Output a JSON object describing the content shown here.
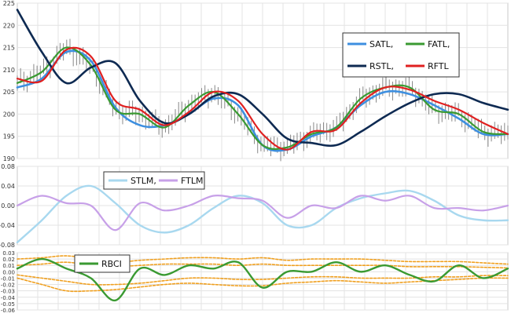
{
  "chart_data": [
    {
      "type": "line",
      "title": "",
      "ylim": [
        190,
        225
      ],
      "yticks": [
        "190",
        "195",
        "200",
        "205",
        "210",
        "215",
        "220",
        "225"
      ],
      "grid": true,
      "legend": {
        "placement": "top-right",
        "entries": [
          {
            "label": "SATL,",
            "color": "#3d8fe0"
          },
          {
            "label": "FATL,",
            "color": "#3a9a32"
          },
          {
            "label": "RSTL,",
            "color": "#0e2a52"
          },
          {
            "label": "RFTL",
            "color": "#e02020"
          }
        ]
      },
      "price_bars_color": "#888888",
      "x": [
        0,
        0.05,
        0.1,
        0.15,
        0.2,
        0.25,
        0.3,
        0.35,
        0.4,
        0.45,
        0.5,
        0.55,
        0.6,
        0.65,
        0.7,
        0.75,
        0.8,
        0.85,
        0.9,
        0.95,
        1.0
      ],
      "series": [
        {
          "name": "SATL",
          "color": "#3d8fe0",
          "width": 2.6,
          "values": [
            206,
            208,
            214,
            212,
            201.5,
            197.5,
            197.5,
            200,
            203.5,
            202,
            193,
            192,
            195,
            197,
            202,
            205,
            204.5,
            202,
            199,
            195.5,
            195.5
          ]
        },
        {
          "name": "FATL",
          "color": "#3a9a32",
          "width": 2.2,
          "values": [
            207,
            209.5,
            215,
            211,
            201,
            200,
            197,
            202,
            205,
            200,
            193,
            192.5,
            195.5,
            197,
            203.5,
            206,
            206,
            201,
            200,
            196,
            195.5
          ]
        },
        {
          "name": "RSTL",
          "color": "#0e2a52",
          "width": 2.6,
          "values": [
            223.5,
            214,
            207,
            210.5,
            211.5,
            203,
            198,
            200,
            204,
            204.5,
            200,
            194.5,
            193.5,
            193,
            196,
            199.5,
            202.5,
            204.5,
            204.5,
            202.5,
            201
          ]
        },
        {
          "name": "RFTL",
          "color": "#e02020",
          "width": 2.2,
          "values": [
            208,
            207.5,
            214.5,
            213,
            203,
            201,
            197.5,
            200.5,
            205,
            203,
            195.5,
            192,
            196,
            196.5,
            202.5,
            206,
            205.5,
            203,
            201,
            198,
            195.5
          ]
        }
      ]
    },
    {
      "type": "line",
      "title": "",
      "ylim": [
        -0.08,
        0.08
      ],
      "yticks": [
        "-0.08",
        "-0.04",
        "0.00",
        "0.04",
        "0.08"
      ],
      "grid": true,
      "legend": {
        "placement": "top-left",
        "entries": [
          {
            "label": "STLM,",
            "color": "#a8d8ef"
          },
          {
            "label": "FTLM",
            "color": "#c7a0e8"
          }
        ]
      },
      "x": [
        0,
        0.05,
        0.1,
        0.15,
        0.2,
        0.25,
        0.3,
        0.35,
        0.4,
        0.45,
        0.5,
        0.55,
        0.6,
        0.65,
        0.7,
        0.75,
        0.8,
        0.85,
        0.9,
        0.95,
        1.0
      ],
      "series": [
        {
          "name": "STLM",
          "color": "#a8d8ef",
          "width": 2.4,
          "values": [
            -0.075,
            -0.03,
            0.02,
            0.04,
            0.005,
            -0.04,
            -0.055,
            -0.04,
            -0.005,
            0.02,
            0.005,
            -0.04,
            -0.04,
            -0.005,
            0.015,
            0.025,
            0.03,
            0.01,
            -0.02,
            -0.03,
            -0.03
          ]
        },
        {
          "name": "FTLM",
          "color": "#c7a0e8",
          "width": 2.2,
          "values": [
            0.0,
            0.02,
            0.005,
            0.0,
            -0.05,
            0.005,
            -0.01,
            0.0,
            0.02,
            0.015,
            0.01,
            -0.025,
            0.0,
            -0.005,
            0.02,
            0.01,
            0.02,
            -0.005,
            -0.005,
            -0.01,
            0.0
          ]
        }
      ]
    },
    {
      "type": "line",
      "title": "",
      "ylim": [
        -0.06,
        0.03
      ],
      "yticks": [
        "-0.06",
        "-0.05",
        "-0.04",
        "-0.03",
        "-0.02",
        "-0.01",
        "0.00",
        "0.01",
        "0.02",
        "0.03"
      ],
      "grid": true,
      "legend": {
        "placement": "top-left",
        "entries": [
          {
            "label": "RBCI",
            "color": "#3a9a32"
          }
        ]
      },
      "x": [
        0,
        0.05,
        0.1,
        0.15,
        0.2,
        0.25,
        0.3,
        0.35,
        0.4,
        0.45,
        0.5,
        0.55,
        0.6,
        0.65,
        0.7,
        0.75,
        0.8,
        0.85,
        0.9,
        0.95,
        1.0
      ],
      "series": [
        {
          "name": "RBCI",
          "color": "#3a9a32",
          "width": 2.4,
          "values": [
            0.005,
            0.02,
            0.005,
            -0.01,
            -0.045,
            0.005,
            -0.005,
            0.01,
            0.005,
            0.015,
            -0.025,
            0.0,
            0.0,
            0.015,
            0.0,
            0.01,
            -0.005,
            -0.015,
            0.01,
            -0.01,
            0.005
          ]
        },
        {
          "name": "upper-band-2",
          "color": "#f0a020",
          "width": 1.6,
          "dash": "3,2",
          "values": [
            0.02,
            0.022,
            0.025,
            0.02,
            0.015,
            0.018,
            0.02,
            0.022,
            0.022,
            0.02,
            0.022,
            0.018,
            0.02,
            0.02,
            0.02,
            0.018,
            0.016,
            0.016,
            0.016,
            0.014,
            0.012
          ]
        },
        {
          "name": "upper-band-1",
          "color": "#f0a020",
          "width": 1.6,
          "dash": "3,2",
          "values": [
            0.01,
            0.012,
            0.015,
            0.01,
            0.008,
            0.01,
            0.012,
            0.012,
            0.012,
            0.01,
            0.012,
            0.01,
            0.01,
            0.01,
            0.01,
            0.01,
            0.008,
            0.008,
            0.008,
            0.007,
            0.006
          ]
        },
        {
          "name": "lower-band-1",
          "color": "#f0a020",
          "width": 1.6,
          "dash": "3,2",
          "values": [
            -0.005,
            -0.01,
            -0.015,
            -0.02,
            -0.02,
            -0.018,
            -0.014,
            -0.01,
            -0.01,
            -0.012,
            -0.012,
            -0.01,
            -0.008,
            -0.008,
            -0.01,
            -0.01,
            -0.01,
            -0.008,
            -0.008,
            -0.006,
            -0.006
          ]
        },
        {
          "name": "lower-band-2",
          "color": "#f0a020",
          "width": 1.6,
          "dash": "3,2",
          "values": [
            -0.01,
            -0.02,
            -0.03,
            -0.03,
            -0.028,
            -0.024,
            -0.02,
            -0.018,
            -0.02,
            -0.022,
            -0.022,
            -0.018,
            -0.016,
            -0.014,
            -0.016,
            -0.018,
            -0.016,
            -0.014,
            -0.012,
            -0.01,
            -0.01
          ]
        }
      ]
    }
  ]
}
